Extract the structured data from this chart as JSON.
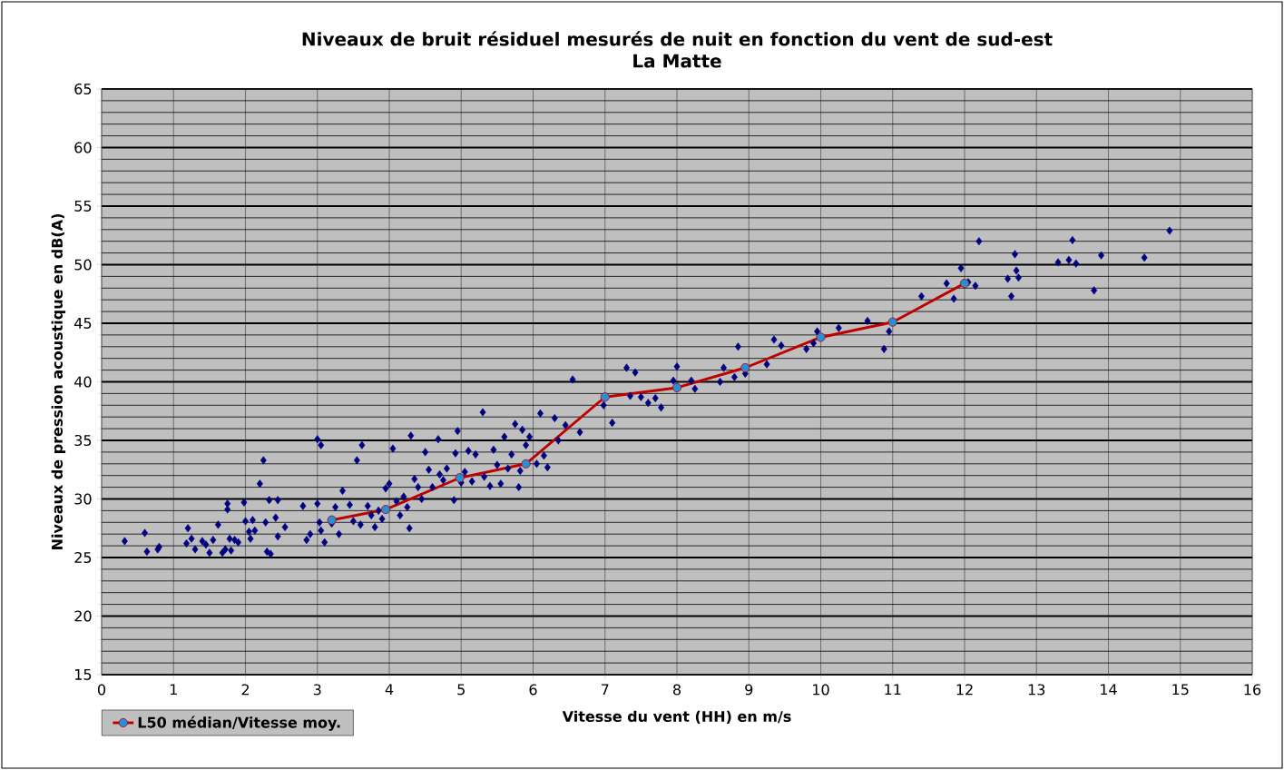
{
  "chart_data": {
    "type": "scatter",
    "title": "Niveaux de bruit  résiduel mesurés de nuit en fonction du vent de sud-est",
    "subtitle": "La Matte",
    "xlabel": "Vitesse du vent (HH) en m/s",
    "ylabel": "Niveaux de pression acoustique en dB(A)",
    "xlim": [
      0,
      16
    ],
    "ylim": [
      15,
      65
    ],
    "xticks": [
      0,
      1,
      2,
      3,
      4,
      5,
      6,
      7,
      8,
      9,
      10,
      11,
      12,
      13,
      14,
      15,
      16
    ],
    "yticks": [
      15,
      20,
      25,
      30,
      35,
      40,
      45,
      50,
      55,
      60,
      65
    ],
    "grid": true,
    "legend": "bottom left",
    "series": [
      {
        "type": "scatter",
        "color": "#000080",
        "marker": "diamond",
        "x": [
          0.32,
          0.6,
          0.63,
          0.8,
          0.78,
          1.2,
          1.18,
          1.25,
          1.3,
          1.4,
          1.45,
          1.5,
          1.55,
          1.62,
          1.68,
          1.72,
          1.75,
          1.75,
          1.78,
          1.8,
          1.85,
          1.9,
          1.98,
          2.0,
          2.05,
          2.07,
          2.1,
          2.13,
          2.2,
          2.25,
          2.28,
          2.3,
          2.35,
          2.33,
          2.45,
          2.42,
          2.45,
          2.55,
          2.8,
          2.85,
          2.9,
          3.0,
          3.05,
          3.0,
          3.03,
          3.05,
          3.1,
          3.2,
          3.25,
          3.3,
          3.35,
          3.45,
          3.5,
          3.55,
          3.6,
          3.62,
          3.7,
          3.75,
          3.8,
          3.85,
          3.9,
          3.95,
          4.0,
          4.05,
          4.1,
          4.15,
          4.2,
          4.25,
          4.28,
          4.3,
          4.35,
          4.4,
          4.45,
          4.5,
          4.55,
          4.6,
          4.68,
          4.7,
          4.75,
          4.8,
          4.9,
          4.92,
          4.95,
          5.0,
          5.05,
          5.1,
          5.15,
          5.2,
          5.3,
          5.32,
          5.4,
          5.45,
          5.5,
          5.55,
          5.6,
          5.65,
          5.7,
          5.75,
          5.8,
          5.82,
          5.85,
          5.9,
          5.95,
          6.05,
          6.1,
          6.15,
          6.2,
          6.3,
          6.35,
          6.45,
          6.55,
          6.65,
          6.98,
          7.1,
          7.3,
          7.35,
          7.42,
          7.5,
          7.6,
          7.7,
          7.78,
          7.95,
          8.0,
          8.2,
          8.25,
          8.6,
          8.65,
          8.8,
          8.85,
          8.95,
          9.25,
          9.35,
          9.45,
          9.8,
          9.9,
          9.95,
          10.25,
          10.65,
          10.88,
          10.95,
          11.4,
          11.75,
          11.85,
          11.95,
          12.05,
          12.15,
          12.2,
          12.6,
          12.65,
          12.7,
          12.72,
          12.75,
          13.3,
          13.45,
          13.5,
          13.55,
          13.8,
          13.9,
          14.5,
          14.85
        ],
        "values": [
          26.4,
          27.1,
          25.5,
          25.9,
          25.7,
          27.5,
          26.2,
          26.6,
          25.7,
          26.4,
          26.1,
          25.4,
          26.5,
          27.8,
          25.4,
          25.7,
          29.6,
          29.1,
          26.6,
          25.6,
          26.5,
          26.3,
          29.7,
          28.1,
          27.2,
          26.6,
          28.2,
          27.3,
          31.3,
          33.3,
          28.0,
          25.5,
          25.3,
          29.9,
          29.9,
          28.4,
          26.8,
          27.6,
          29.4,
          26.5,
          27.0,
          35.1,
          34.6,
          29.6,
          28.0,
          27.3,
          26.3,
          27.9,
          29.3,
          27.0,
          30.7,
          29.5,
          28.1,
          33.3,
          27.8,
          34.6,
          29.4,
          28.6,
          27.6,
          29.0,
          28.3,
          30.9,
          31.3,
          34.3,
          29.8,
          28.6,
          30.2,
          29.3,
          27.5,
          35.4,
          31.7,
          31.0,
          30.0,
          34.0,
          32.5,
          31.0,
          35.1,
          32.1,
          31.6,
          32.6,
          29.9,
          33.9,
          35.8,
          31.4,
          32.3,
          34.1,
          31.5,
          33.8,
          37.4,
          31.9,
          31.1,
          34.2,
          32.9,
          31.3,
          35.3,
          32.6,
          33.8,
          36.4,
          31.0,
          32.4,
          35.9,
          34.6,
          35.3,
          33.0,
          37.3,
          33.7,
          32.7,
          36.9,
          35.0,
          36.3,
          40.2,
          35.7,
          38.0,
          36.5,
          41.2,
          38.8,
          40.8,
          38.7,
          38.2,
          38.6,
          37.8,
          40.1,
          41.3,
          40.1,
          39.4,
          40.0,
          41.2,
          40.4,
          43.0,
          40.7,
          41.5,
          43.6,
          43.1,
          42.8,
          43.3,
          44.3,
          44.6,
          45.2,
          42.8,
          44.3,
          47.3,
          48.4,
          47.1,
          49.7,
          48.5,
          48.2,
          52.0,
          48.8,
          47.3,
          50.9,
          49.5,
          48.9,
          50.2,
          50.4,
          52.1,
          50.1,
          47.8,
          50.8,
          50.6,
          52.9
        ]
      },
      {
        "type": "line",
        "name": "L50 médian/Vitesse moy.",
        "color": "#c00000",
        "marker": "circle",
        "x": [
          3.2,
          3.95,
          4.98,
          5.9,
          7.0,
          8.0,
          8.95,
          10.0,
          11.0,
          12.0
        ],
        "values": [
          28.2,
          29.1,
          31.8,
          33.0,
          38.7,
          39.5,
          41.2,
          43.8,
          45.1,
          48.4
        ]
      }
    ]
  }
}
